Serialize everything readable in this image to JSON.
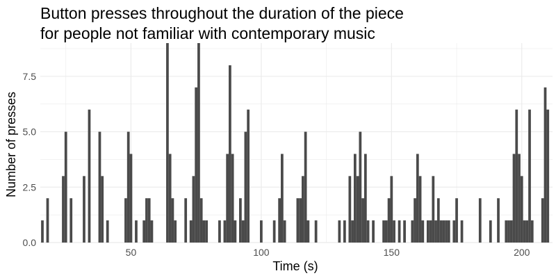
{
  "chart_data": {
    "type": "bar",
    "title": "Button presses throughout the duration of the piece",
    "subtitle": "for people not familiar with contemporary music",
    "xlabel": "Time (s)",
    "ylabel": "Number of presses",
    "xlim": [
      15.2,
      211.8
    ],
    "ylim": [
      0,
      9
    ],
    "x_ticks": [
      50,
      100,
      150,
      200
    ],
    "x_tick_labels": [
      "50",
      "100",
      "150",
      "200"
    ],
    "y_ticks": [
      0,
      2.5,
      5,
      7.5
    ],
    "y_tick_labels": [
      "0.0",
      "2.5",
      "5.0",
      "7.5"
    ],
    "grid": true,
    "bar_color": "#4a4a4a",
    "grid_color": "#ebebeb",
    "bars": [
      {
        "x": 16,
        "y": 1
      },
      {
        "x": 18,
        "y": 2
      },
      {
        "x": 24,
        "y": 3
      },
      {
        "x": 25,
        "y": 5
      },
      {
        "x": 27,
        "y": 2
      },
      {
        "x": 32,
        "y": 3
      },
      {
        "x": 34,
        "y": 6
      },
      {
        "x": 38,
        "y": 5
      },
      {
        "x": 39,
        "y": 3
      },
      {
        "x": 41,
        "y": 1
      },
      {
        "x": 48,
        "y": 2
      },
      {
        "x": 49,
        "y": 5
      },
      {
        "x": 50,
        "y": 4
      },
      {
        "x": 52,
        "y": 1
      },
      {
        "x": 55,
        "y": 1
      },
      {
        "x": 56,
        "y": 2
      },
      {
        "x": 57,
        "y": 2
      },
      {
        "x": 58,
        "y": 1
      },
      {
        "x": 64,
        "y": 9
      },
      {
        "x": 65,
        "y": 4
      },
      {
        "x": 66,
        "y": 2
      },
      {
        "x": 67,
        "y": 1
      },
      {
        "x": 71,
        "y": 2
      },
      {
        "x": 73,
        "y": 1
      },
      {
        "x": 74,
        "y": 3
      },
      {
        "x": 75,
        "y": 7
      },
      {
        "x": 76,
        "y": 9
      },
      {
        "x": 77,
        "y": 2
      },
      {
        "x": 78,
        "y": 1
      },
      {
        "x": 79,
        "y": 1
      },
      {
        "x": 84,
        "y": 1
      },
      {
        "x": 86,
        "y": 1
      },
      {
        "x": 87,
        "y": 4
      },
      {
        "x": 88,
        "y": 8
      },
      {
        "x": 89,
        "y": 4
      },
      {
        "x": 90,
        "y": 1
      },
      {
        "x": 92,
        "y": 2
      },
      {
        "x": 93,
        "y": 1
      },
      {
        "x": 94,
        "y": 5
      },
      {
        "x": 95,
        "y": 6
      },
      {
        "x": 100,
        "y": 1
      },
      {
        "x": 105,
        "y": 1
      },
      {
        "x": 107,
        "y": 2
      },
      {
        "x": 108,
        "y": 4
      },
      {
        "x": 109,
        "y": 1
      },
      {
        "x": 114,
        "y": 2
      },
      {
        "x": 115,
        "y": 2
      },
      {
        "x": 116,
        "y": 3
      },
      {
        "x": 117,
        "y": 5
      },
      {
        "x": 118,
        "y": 1
      },
      {
        "x": 121,
        "y": 1
      },
      {
        "x": 130,
        "y": 1
      },
      {
        "x": 132,
        "y": 1
      },
      {
        "x": 134,
        "y": 3
      },
      {
        "x": 135,
        "y": 1
      },
      {
        "x": 136,
        "y": 4
      },
      {
        "x": 137,
        "y": 3
      },
      {
        "x": 138,
        "y": 5
      },
      {
        "x": 139,
        "y": 2
      },
      {
        "x": 140,
        "y": 4
      },
      {
        "x": 141,
        "y": 1
      },
      {
        "x": 143,
        "y": 1
      },
      {
        "x": 147,
        "y": 1
      },
      {
        "x": 148,
        "y": 1
      },
      {
        "x": 149,
        "y": 2
      },
      {
        "x": 150,
        "y": 3
      },
      {
        "x": 151,
        "y": 1
      },
      {
        "x": 153,
        "y": 1
      },
      {
        "x": 155,
        "y": 1
      },
      {
        "x": 158,
        "y": 1
      },
      {
        "x": 159,
        "y": 2
      },
      {
        "x": 160,
        "y": 4
      },
      {
        "x": 161,
        "y": 3
      },
      {
        "x": 162,
        "y": 1
      },
      {
        "x": 164,
        "y": 1
      },
      {
        "x": 165,
        "y": 1
      },
      {
        "x": 166,
        "y": 3
      },
      {
        "x": 167,
        "y": 1
      },
      {
        "x": 168,
        "y": 2
      },
      {
        "x": 169,
        "y": 1
      },
      {
        "x": 170,
        "y": 1
      },
      {
        "x": 171,
        "y": 1
      },
      {
        "x": 172,
        "y": 1
      },
      {
        "x": 174,
        "y": 1
      },
      {
        "x": 175,
        "y": 2
      },
      {
        "x": 177,
        "y": 1
      },
      {
        "x": 184,
        "y": 2
      },
      {
        "x": 188,
        "y": 1
      },
      {
        "x": 191,
        "y": 2
      },
      {
        "x": 194,
        "y": 1
      },
      {
        "x": 195,
        "y": 1
      },
      {
        "x": 196,
        "y": 1
      },
      {
        "x": 197,
        "y": 4
      },
      {
        "x": 198,
        "y": 6
      },
      {
        "x": 199,
        "y": 4
      },
      {
        "x": 200,
        "y": 3
      },
      {
        "x": 201,
        "y": 1
      },
      {
        "x": 202,
        "y": 1
      },
      {
        "x": 203,
        "y": 6
      },
      {
        "x": 204,
        "y": 1
      },
      {
        "x": 208,
        "y": 2
      },
      {
        "x": 209,
        "y": 7
      },
      {
        "x": 210,
        "y": 6
      }
    ]
  }
}
